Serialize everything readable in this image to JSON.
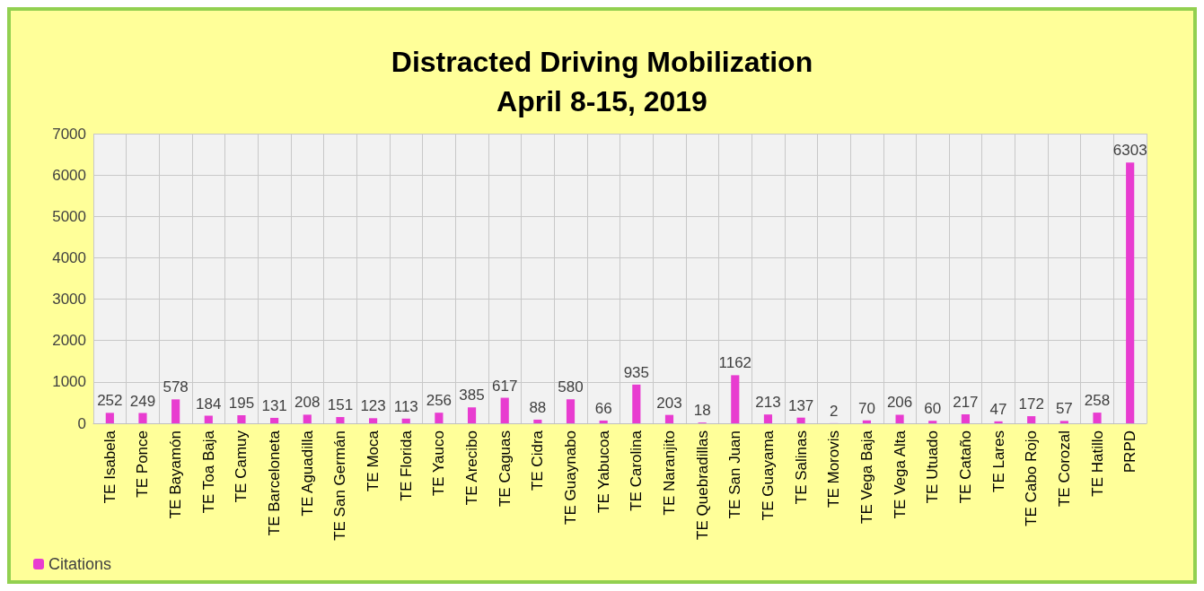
{
  "chart_data": {
    "type": "bar",
    "title": "Distracted Driving Mobilization\nApril 8-15, 2019",
    "categories": [
      "TE Isabela",
      "TE Ponce",
      "TE Bayamón",
      "TE Toa Baja",
      "TE Camuy",
      "TE Barceloneta",
      "TE Aguadilla",
      "TE San Germán",
      "TE Moca",
      "TE Florida",
      "TE Yauco",
      "TE Arecibo",
      "TE Caguas",
      "TE Cidra",
      "TE Guaynabo",
      "TE Yabucoa",
      "TE Carolina",
      "TE Naranjito",
      "TE Quebradillas",
      "TE San Juan",
      "TE Guayama",
      "TE Salinas",
      "TE Morovis",
      "TE Vega Baja",
      "TE Vega Alta",
      "TE Utuado",
      "TE Cataño",
      "TE Lares",
      "TE Cabo Rojo",
      "TE Corozal",
      "TE Hatillo",
      "PRPD"
    ],
    "series": [
      {
        "name": "Citations",
        "color": "#e83cd0",
        "values": [
          252,
          249,
          578,
          184,
          195,
          131,
          208,
          151,
          123,
          113,
          256,
          385,
          617,
          88,
          580,
          66,
          935,
          203,
          18,
          1162,
          213,
          137,
          2,
          70,
          206,
          60,
          217,
          47,
          172,
          57,
          258,
          6303
        ]
      }
    ],
    "ylim": [
      0,
      7000
    ],
    "yticks": [
      0,
      1000,
      2000,
      3000,
      4000,
      5000,
      6000,
      7000
    ],
    "grid": true,
    "legend": "bottom left",
    "data_labels": true
  }
}
